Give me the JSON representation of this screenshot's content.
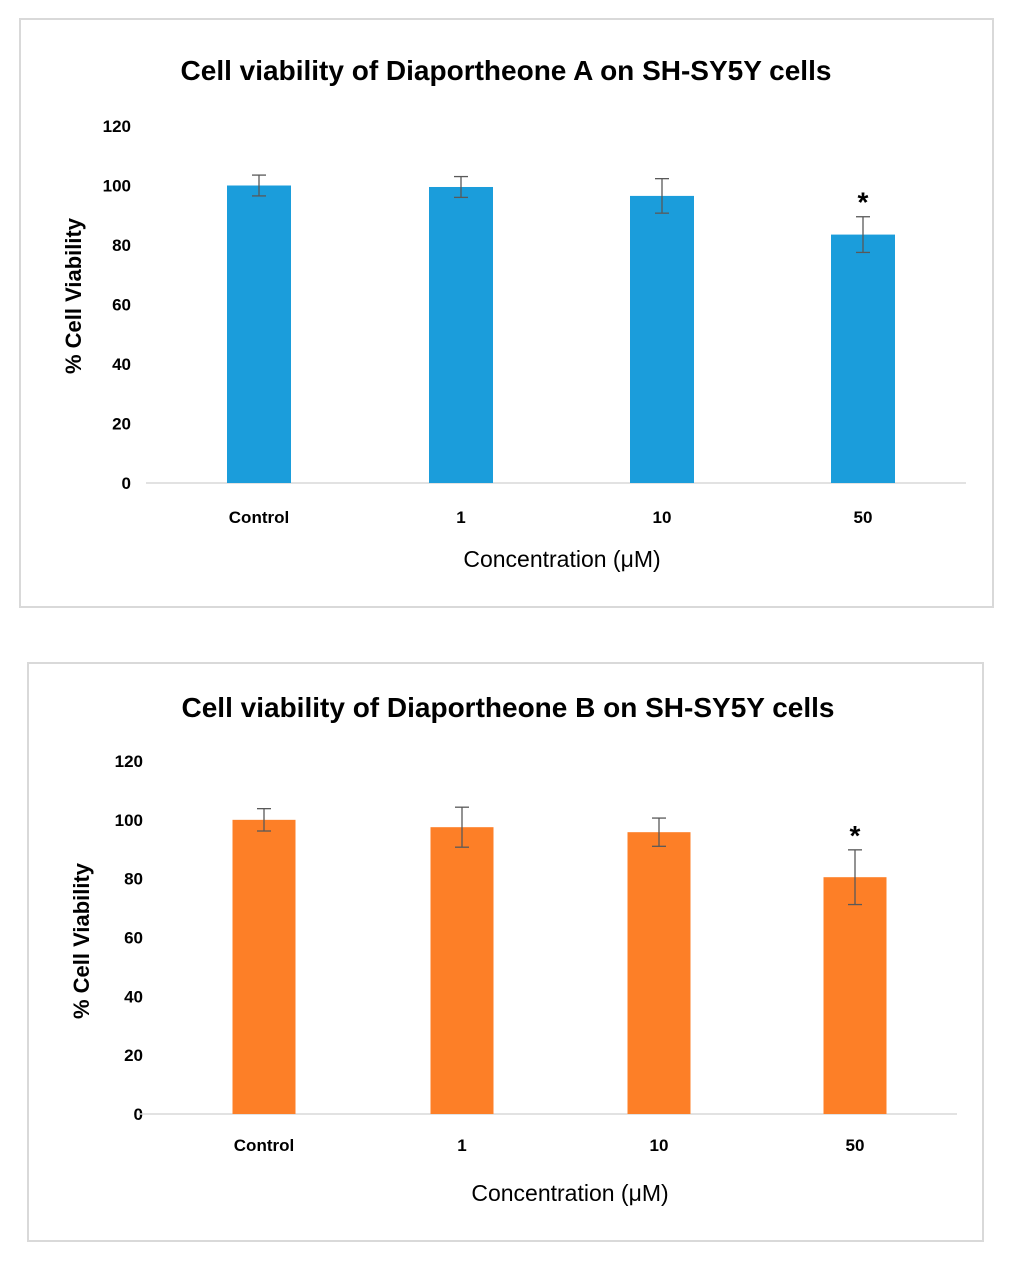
{
  "chart_data": [
    {
      "type": "bar",
      "title": "Cell viability of Diaportheone A on SH-SY5Y cells",
      "xlabel": "Concentration (μM)",
      "ylabel": "% Cell Viability",
      "categories": [
        "Control",
        "1",
        "10",
        "50"
      ],
      "values": [
        100,
        99.5,
        96.5,
        83.5
      ],
      "error": [
        3.5,
        3.5,
        5.8,
        6
      ],
      "significance": [
        "",
        "",
        "",
        "*"
      ],
      "ylim": [
        0,
        120
      ],
      "yticks": [
        0,
        20,
        40,
        60,
        80,
        100,
        120
      ],
      "grid": false,
      "color": "#1b9ddb"
    },
    {
      "type": "bar",
      "title": "Cell viability of Diaportheone B on SH-SY5Y cells",
      "xlabel": "Concentration (μM)",
      "ylabel": "% Cell Viability",
      "categories": [
        "Control",
        "1",
        "10",
        "50"
      ],
      "values": [
        100,
        97.5,
        95.8,
        80.5
      ],
      "error": [
        3.8,
        6.8,
        4.8,
        9.3
      ],
      "significance": [
        "",
        "",
        "",
        "*"
      ],
      "ylim": [
        0,
        120
      ],
      "yticks": [
        0,
        20,
        40,
        60,
        80,
        100,
        120
      ],
      "grid": false,
      "color": "#fd7f27"
    }
  ]
}
